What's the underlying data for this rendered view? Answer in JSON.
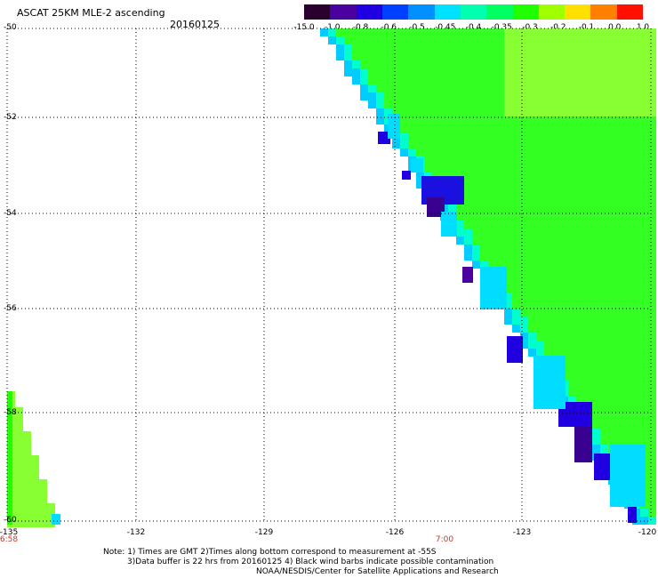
{
  "header": {
    "title": "ASCAT 25KM MLE-2 ascending",
    "date": "20160125"
  },
  "colorbar": {
    "labels": [
      "-15.0",
      "-1.0",
      "-0.8",
      "-0.6",
      "-0.5",
      "-0.45",
      "-0.4",
      "-0.35",
      "-0.3",
      "-0.2",
      "-0.1",
      "0.0",
      "1.0"
    ],
    "colors": [
      "#2a002f",
      "#4b00a0",
      "#2000e0",
      "#0040ff",
      "#0090ff",
      "#00e0ff",
      "#00ffb0",
      "#00ff60",
      "#20ff00",
      "#a0ff00",
      "#ffe000",
      "#ff8000",
      "#ff1000"
    ]
  },
  "axes": {
    "lat_labels": [
      "-50",
      "-52",
      "-54",
      "-56",
      "-58",
      "-60"
    ],
    "lon_labels": [
      "-135",
      "-132",
      "-129",
      "-126",
      "-123",
      "-120"
    ],
    "time_labels": [
      "6:58",
      "7:00"
    ]
  },
  "notes": {
    "line1": "Note: 1) Times are GMT 2)Times along bottom correspond to measurement at -55S",
    "line2": "3)Data buffer is 22 hrs from 20160125 4) Black wind barbs indicate possible contamination",
    "line3": "NOAA/NESDIS/Center for Satellite Applications and Research"
  },
  "colors": {
    "background": "#ffffff",
    "swath_main": "#33ff22",
    "swath_light": "#88ff33",
    "contamination": "#2a0070"
  }
}
